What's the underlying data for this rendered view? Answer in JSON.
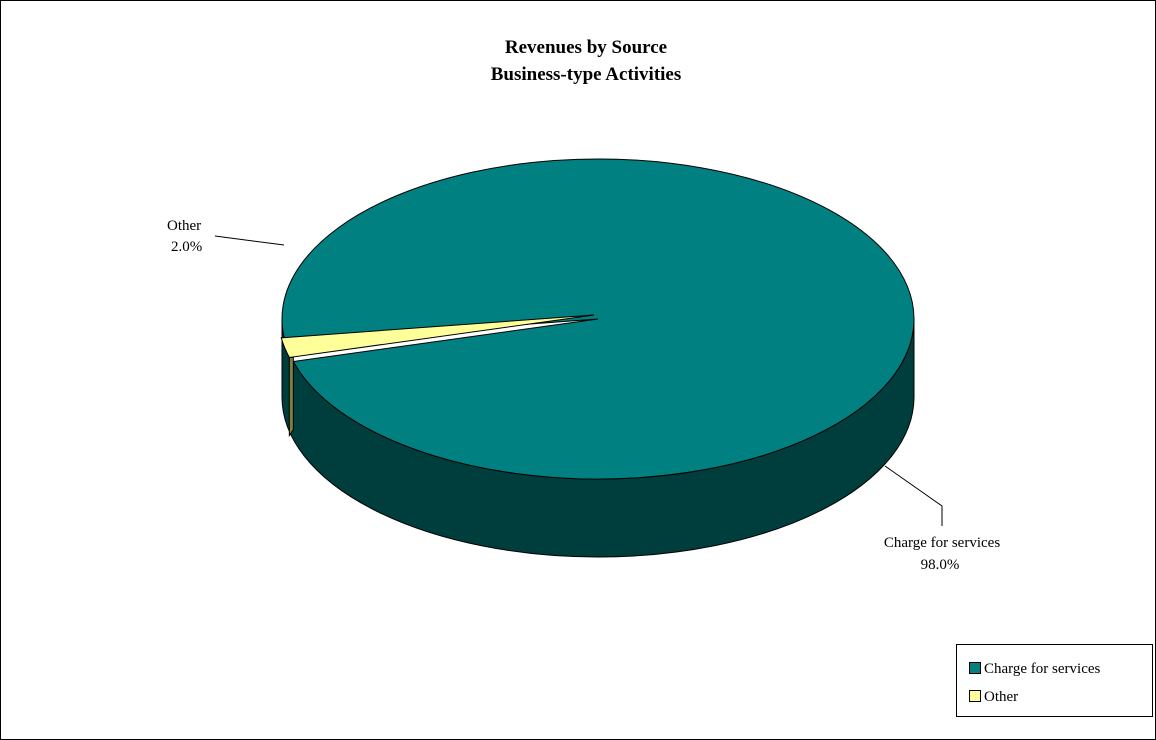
{
  "chart_data": {
    "type": "pie",
    "title": "Revenues by Source",
    "subtitle": "Business-type Activities",
    "categories": [
      "Charge for services",
      "Other"
    ],
    "values": [
      98.0,
      2.0
    ],
    "value_labels": [
      "98.0%",
      "2.0%"
    ],
    "colors": [
      "#008080",
      "#FFFF99"
    ],
    "side_colors": [
      "#003D3D",
      "#7F7F3F"
    ],
    "three_d": true,
    "exploded": "Other",
    "legend_position": "bottom-right"
  }
}
